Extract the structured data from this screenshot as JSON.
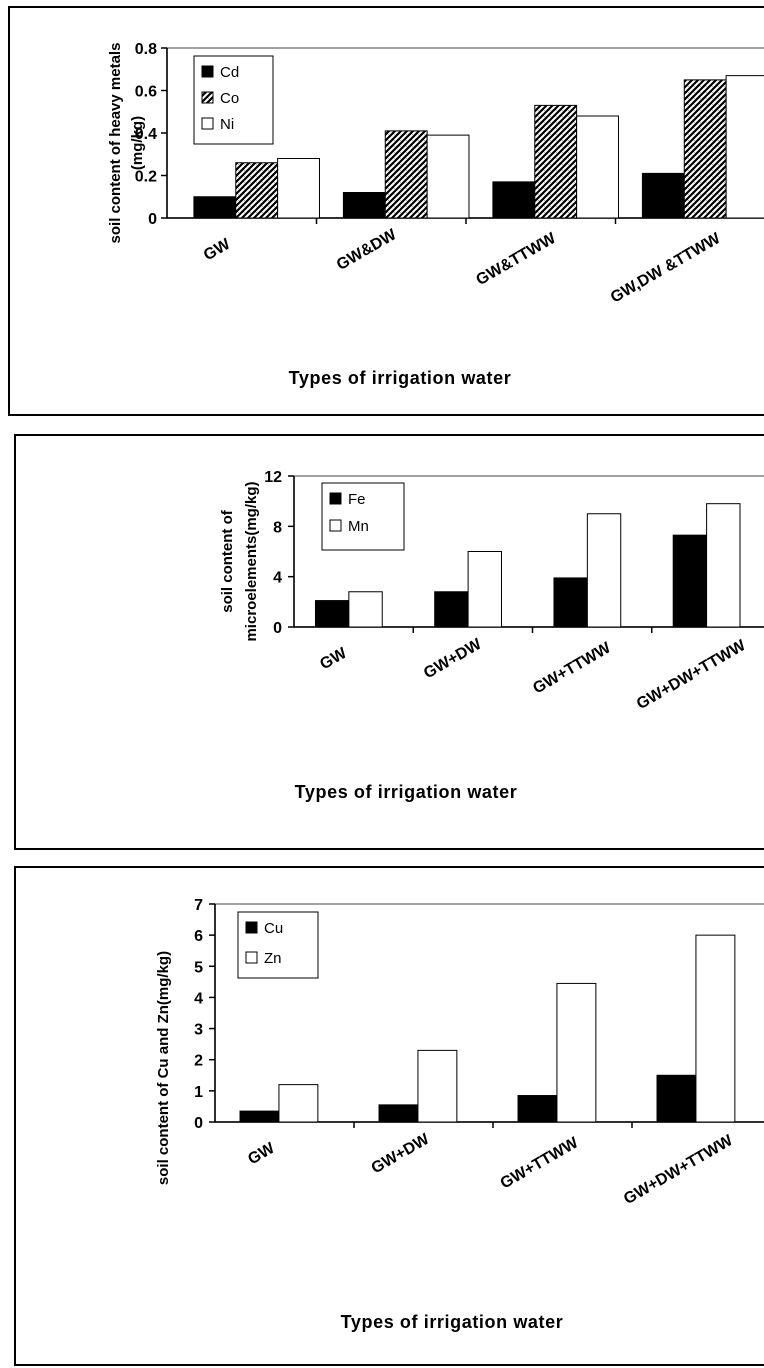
{
  "chart_data": [
    {
      "type": "bar",
      "categories": [
        "GW",
        "GW&DW",
        "GW&TTWW",
        "GW,DW &TTWW"
      ],
      "series": [
        {
          "name": "Cd",
          "values": [
            0.1,
            0.12,
            0.17,
            0.21
          ],
          "fill": "solid",
          "color": "#000000"
        },
        {
          "name": "Co",
          "values": [
            0.26,
            0.41,
            0.53,
            0.65
          ],
          "fill": "hatch",
          "color": "#000000"
        },
        {
          "name": "Ni",
          "values": [
            0.28,
            0.39,
            0.48,
            0.67
          ],
          "fill": "white",
          "color": "#ffffff"
        }
      ],
      "ylim": [
        0,
        0.8
      ],
      "yticks": [
        "0",
        "0.2",
        "0.4",
        "0.6",
        "0.8"
      ],
      "ylabel_lines": [
        "soil content of heavy metals",
        "(mg/kg)"
      ],
      "xlabel": "Types of irrigation water",
      "legend_position": "top-left",
      "grid": false
    },
    {
      "type": "bar",
      "categories": [
        "GW",
        "GW+DW",
        "GW+TTWW",
        "GW+DW+TTWW"
      ],
      "series": [
        {
          "name": "Fe",
          "values": [
            2.1,
            2.8,
            3.9,
            7.3
          ],
          "fill": "solid",
          "color": "#000000"
        },
        {
          "name": "Mn",
          "values": [
            2.8,
            6.0,
            9.0,
            9.8
          ],
          "fill": "white",
          "color": "#ffffff"
        }
      ],
      "ylim": [
        0,
        12
      ],
      "yticks": [
        "0",
        "4",
        "8",
        "12"
      ],
      "ylabel_lines": [
        "soil content of",
        "microelements(mg/kg)"
      ],
      "xlabel": "Types of irrigation water",
      "legend_position": "top-left",
      "grid": false
    },
    {
      "type": "bar",
      "categories": [
        "GW",
        "GW+DW",
        "GW+TTWW",
        "GW+DW+TTWW"
      ],
      "series": [
        {
          "name": "Cu",
          "values": [
            0.35,
            0.55,
            0.85,
            1.5
          ],
          "fill": "solid",
          "color": "#000000"
        },
        {
          "name": "Zn",
          "values": [
            1.2,
            2.3,
            4.45,
            6.0
          ],
          "fill": "white",
          "color": "#ffffff"
        }
      ],
      "ylim": [
        0,
        7
      ],
      "yticks": [
        "0",
        "1",
        "2",
        "3",
        "4",
        "5",
        "6",
        "7"
      ],
      "ylabel_lines": [
        "soil content of Cu and Zn(mg/kg)"
      ],
      "xlabel": "Types of irrigation water",
      "legend_position": "top-left",
      "grid": false
    }
  ]
}
